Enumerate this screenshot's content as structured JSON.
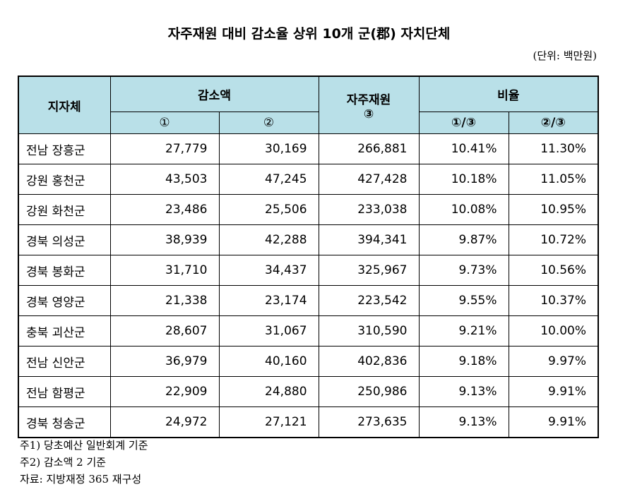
{
  "header": {
    "title": "자주재원 대비 감소율 상위 10개 군(郡) 자치단체",
    "unit": "(단위: 백만원)"
  },
  "table": {
    "header": {
      "region": "지자체",
      "decrease": "감소액",
      "own_revenue": "자주재원",
      "own_revenue_mark": "③",
      "ratio": "비율",
      "sub": [
        "①",
        "②",
        "①/③",
        "②/③"
      ]
    },
    "rows": [
      [
        "전남 장흥군",
        "27,779",
        "30,169",
        "266,881",
        "10.41%",
        "11.30%"
      ],
      [
        "강원 홍천군",
        "43,503",
        "47,245",
        "427,428",
        "10.18%",
        "11.05%"
      ],
      [
        "강원 화천군",
        "23,486",
        "25,506",
        "233,038",
        "10.08%",
        "10.95%"
      ],
      [
        "경북 의성군",
        "38,939",
        "42,288",
        "394,341",
        "9.87%",
        "10.72%"
      ],
      [
        "경북 봉화군",
        "31,710",
        "34,437",
        "325,967",
        "9.73%",
        "10.56%"
      ],
      [
        "경북 영양군",
        "21,338",
        "23,174",
        "223,542",
        "9.55%",
        "10.37%"
      ],
      [
        "충북 괴산군",
        "28,607",
        "31,067",
        "310,590",
        "9.21%",
        "10.00%"
      ],
      [
        "전남 신안군",
        "36,979",
        "40,160",
        "402,836",
        "9.18%",
        "9.97%"
      ],
      [
        "전남 함평군",
        "22,909",
        "24,880",
        "250,986",
        "9.13%",
        "9.91%"
      ],
      [
        "경북 청송군",
        "24,972",
        "27,121",
        "273,635",
        "9.13%",
        "9.91%"
      ]
    ]
  },
  "notes": [
    "주1) 당초예산 일반회계 기준",
    "주2) 감소액 2 기준",
    "자료: 지방재정 365 재구성"
  ]
}
